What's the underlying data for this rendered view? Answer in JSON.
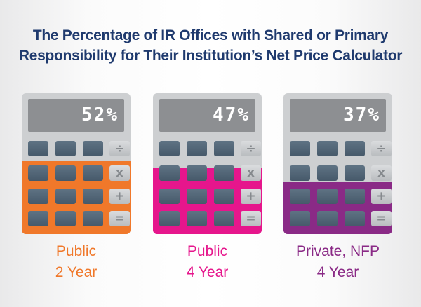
{
  "title": {
    "line1": "The Percentage of IR Offices with Shared or Primary",
    "line2": "Responsibility for Their Institution’s Net Price Calculator"
  },
  "operators": {
    "divide": "÷",
    "multiply": "x",
    "plus": "+",
    "equals": "="
  },
  "chart_data": {
    "type": "bar",
    "title": "The Percentage of IR Offices with Shared or Primary Responsibility for Their Institution’s Net Price Calculator",
    "categories": [
      "Public 2 Year",
      "Public 4 Year",
      "Private, NFP 4 Year"
    ],
    "values": [
      52,
      47,
      37
    ],
    "value_labels": [
      "52%",
      "47%",
      "37%"
    ],
    "unit": "%",
    "colors": [
      "#f0782a",
      "#e6168c",
      "#8a2a86"
    ],
    "ylim": [
      0,
      100
    ]
  },
  "calculators": [
    {
      "readout": "52%",
      "label_line1": "Public",
      "label_line2": "2 Year",
      "color": "#f0782a"
    },
    {
      "readout": "47%",
      "label_line1": "Public",
      "label_line2": "4 Year",
      "color": "#e6168c"
    },
    {
      "readout": "37%",
      "label_line1": "Private, NFP",
      "label_line2": "4 Year",
      "color": "#8a2a86"
    }
  ]
}
